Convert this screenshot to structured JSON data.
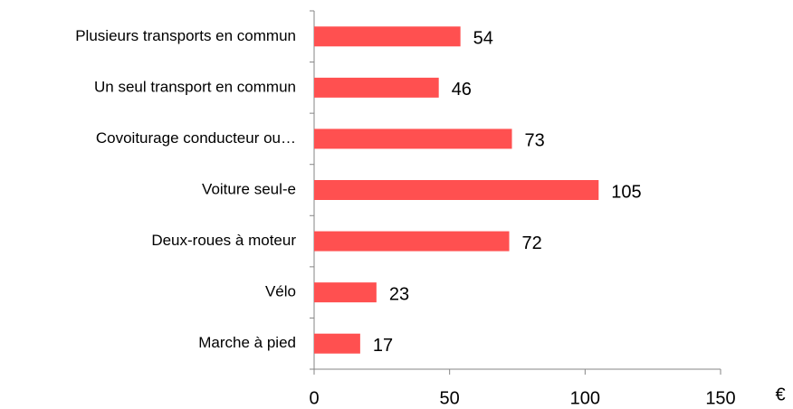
{
  "chart_data": {
    "type": "bar",
    "orientation": "horizontal",
    "categories": [
      "Plusieurs transports en commun",
      "Un seul transport en commun",
      "Covoiturage conducteur ou…",
      "Voiture seul-e",
      "Deux-roues à moteur",
      "Vélo",
      "Marche à pied"
    ],
    "values": [
      54,
      46,
      73,
      105,
      72,
      23,
      17
    ],
    "color": "#ff5050",
    "xlabel": "€",
    "xlim": [
      0,
      150
    ],
    "xticks": [
      0,
      50,
      100,
      150
    ],
    "grid": false
  }
}
